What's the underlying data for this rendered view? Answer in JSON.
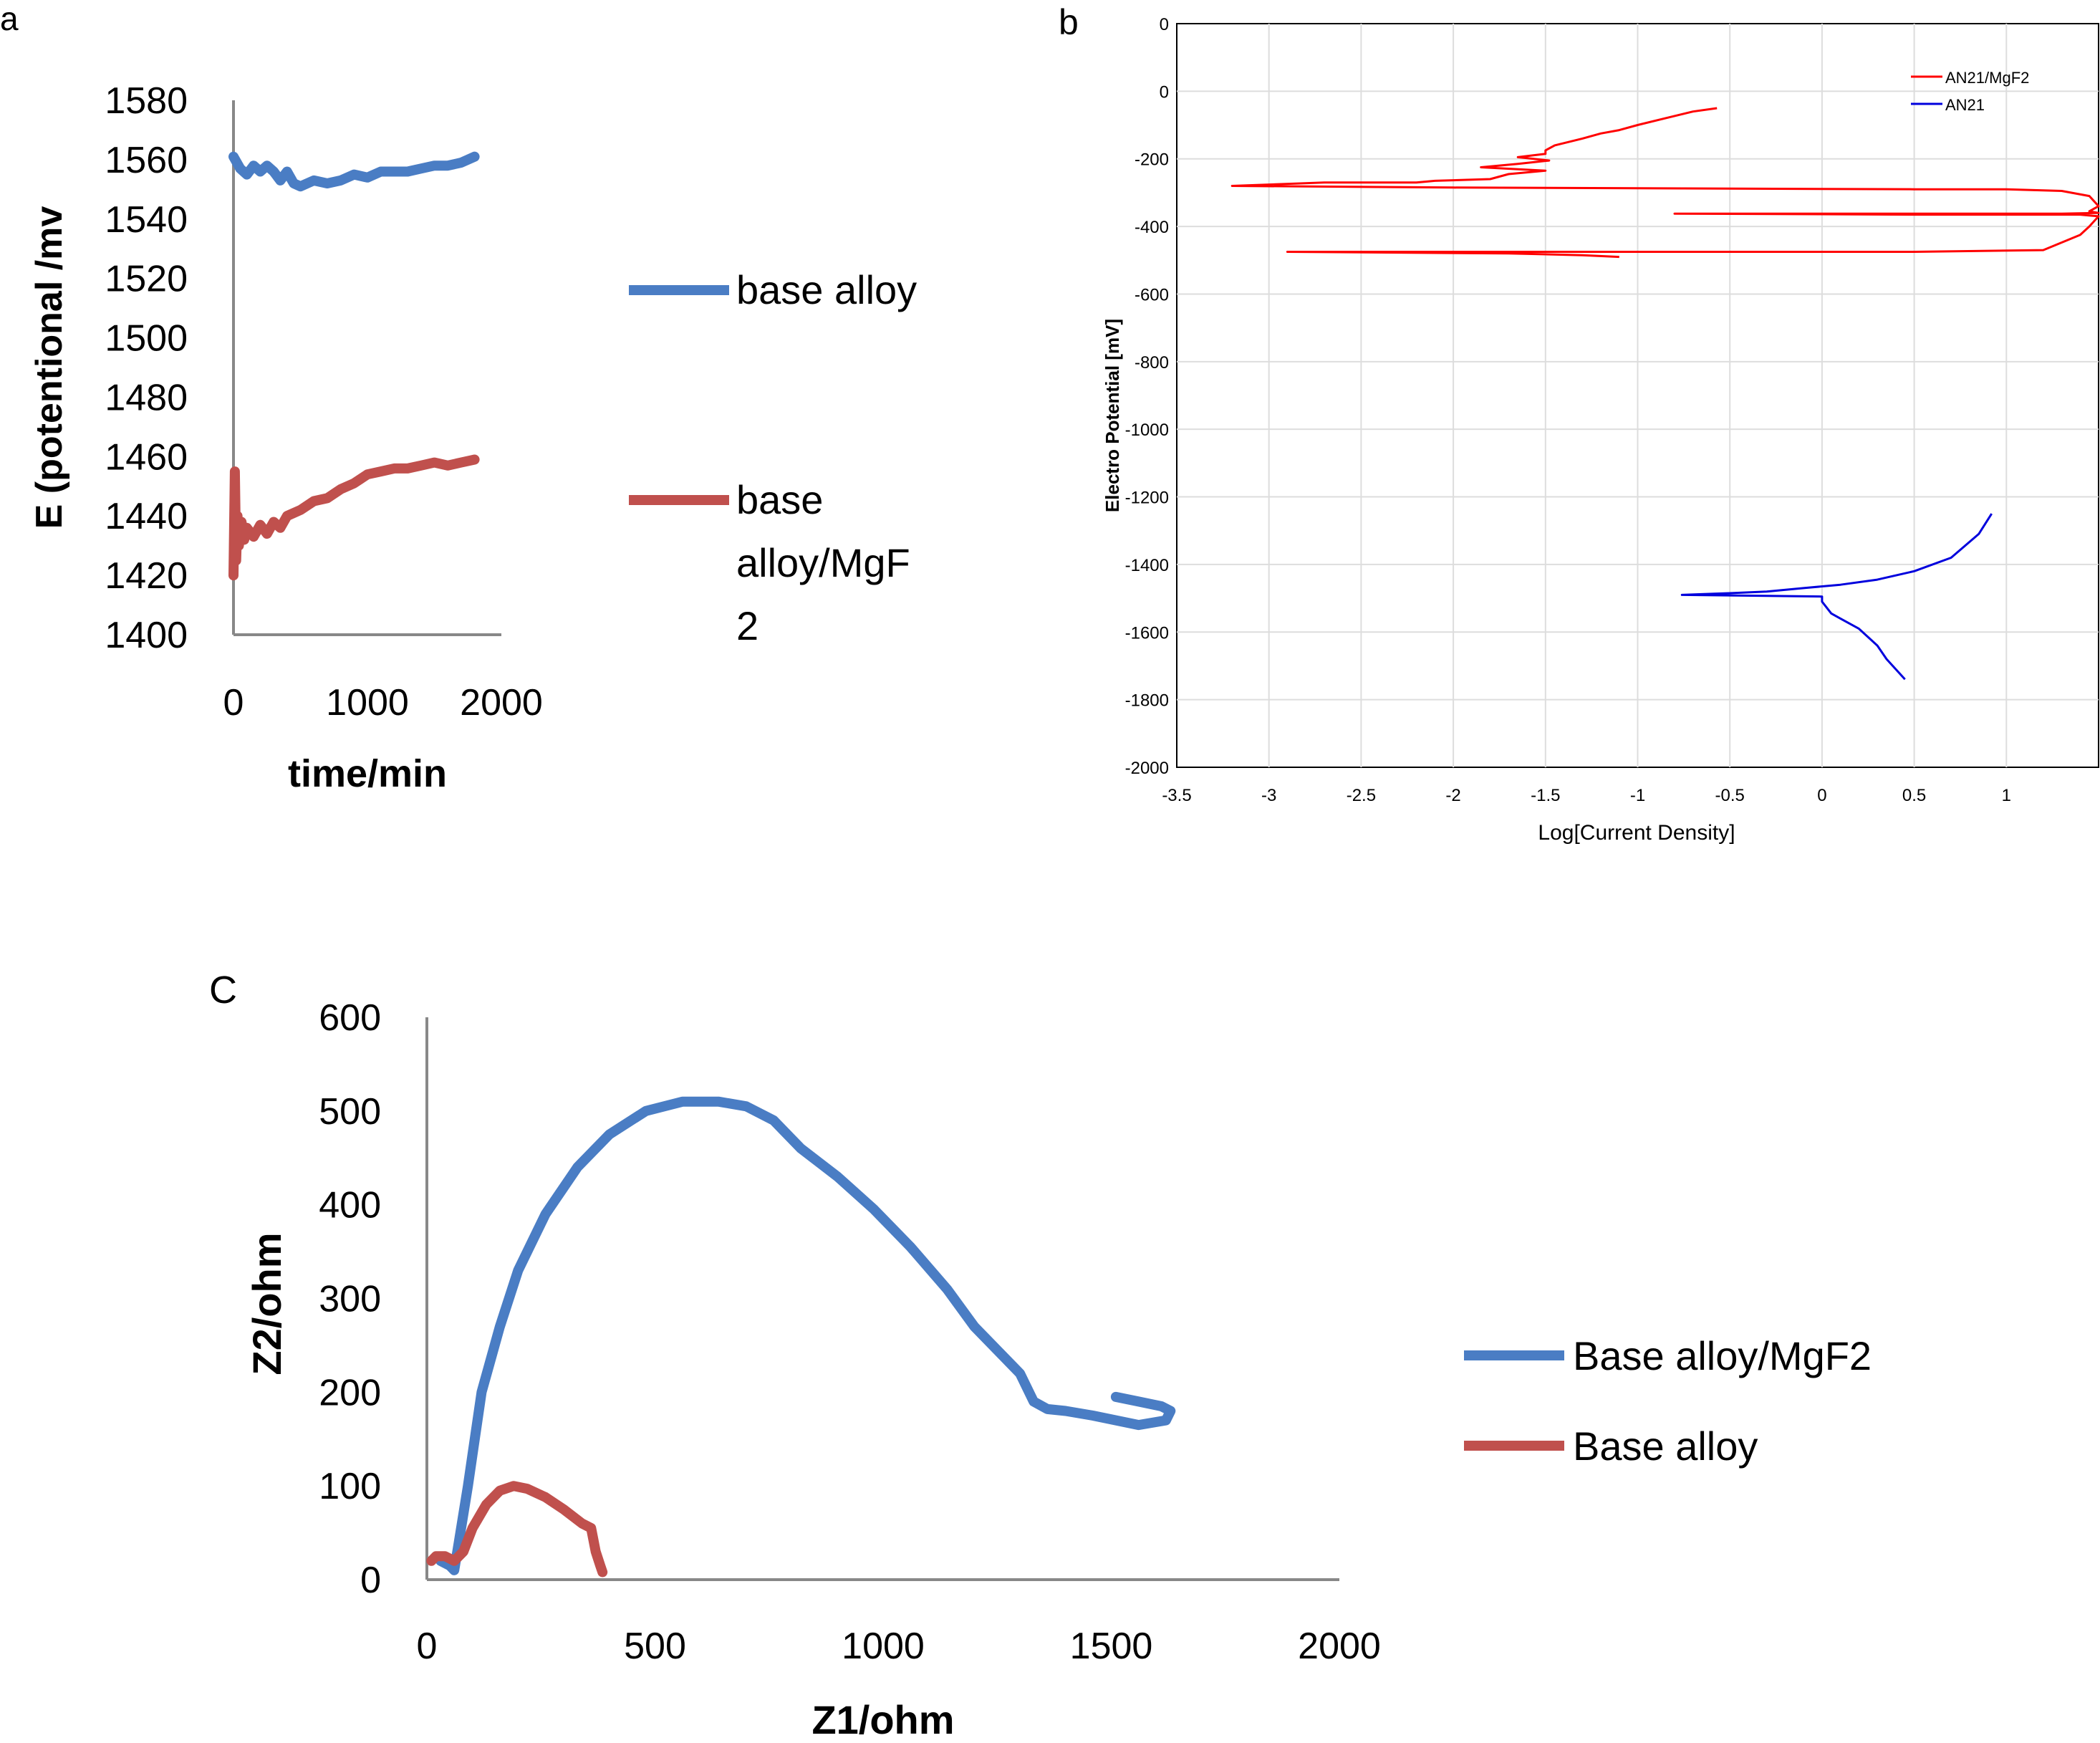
{
  "colors": {
    "blue": "#4a7dc4",
    "red": "#c0504d",
    "pd_red": "#ff0000",
    "pd_blue": "#0000dd",
    "axis": "#888888",
    "grid": "#dddddd"
  },
  "chart_data": [
    {
      "panel": "a",
      "type": "line",
      "title": "",
      "xlabel": "time/min",
      "ylabel": "E (potentional /mv",
      "xlim": [
        0,
        2000
      ],
      "ylim": [
        1400,
        1580
      ],
      "xticks": [
        "0",
        "1000",
        "2000"
      ],
      "yticks": [
        "1580",
        "1560",
        "1540",
        "1520",
        "1500",
        "1480",
        "1460",
        "1440",
        "1420",
        "1400"
      ],
      "legend": [
        "base alloy",
        "base alloy/MgF2"
      ],
      "legend_lines": [
        [
          "base alloy"
        ],
        [
          "base",
          "alloy/MgF",
          "2"
        ]
      ],
      "series": [
        {
          "name": "base alloy",
          "color": "#4a7dc4",
          "x": [
            0,
            50,
            100,
            150,
            200,
            250,
            300,
            350,
            400,
            450,
            500,
            600,
            700,
            800,
            900,
            1000,
            1100,
            1200,
            1300,
            1400,
            1500,
            1600,
            1700,
            1800
          ],
          "y": [
            1561,
            1557,
            1555,
            1558,
            1556,
            1558,
            1556,
            1553,
            1556,
            1552,
            1551,
            1553,
            1552,
            1553,
            1555,
            1554,
            1556,
            1556,
            1556,
            1557,
            1558,
            1558,
            1559,
            1561
          ]
        },
        {
          "name": "base alloy/MgF2",
          "color": "#c0504d",
          "x": [
            0,
            10,
            20,
            30,
            40,
            60,
            80,
            100,
            150,
            200,
            250,
            300,
            350,
            400,
            500,
            600,
            700,
            800,
            900,
            1000,
            1100,
            1200,
            1300,
            1400,
            1500,
            1600,
            1700,
            1800
          ],
          "y": [
            1420,
            1455,
            1425,
            1440,
            1430,
            1438,
            1432,
            1436,
            1433,
            1437,
            1434,
            1438,
            1436,
            1440,
            1442,
            1445,
            1446,
            1449,
            1451,
            1454,
            1455,
            1456,
            1456,
            1457,
            1458,
            1457,
            1458,
            1459
          ]
        }
      ]
    },
    {
      "panel": "b",
      "type": "line",
      "title": "",
      "xlabel": "Log[Current Density]",
      "ylabel": "Electro Potential [mV]",
      "xlim": [
        -3.5,
        1.5
      ],
      "ylim": [
        -2000,
        200
      ],
      "xticks": [
        "-3.5",
        "-3",
        "-2.5",
        "-2",
        "-1.5",
        "-1",
        "-0.5",
        "0",
        "0.5",
        "1"
      ],
      "yticks": [
        "0",
        "0",
        "-200",
        "-400",
        "-600",
        "-800",
        "-1000",
        "-1200",
        "-1400",
        "-1600",
        "-1800",
        "-2000"
      ],
      "grid": true,
      "legend_position": "top-right",
      "legend": [
        "AN21/MgF2",
        "AN21"
      ],
      "series": [
        {
          "name": "AN21/MgF2",
          "color": "#ff0000",
          "x": [
            -0.57,
            -0.7,
            -0.85,
            -1.0,
            -1.1,
            -1.2,
            -1.3,
            -1.45,
            -1.5,
            -1.5,
            -1.65,
            -1.48,
            -1.65,
            -1.85,
            -1.5,
            -1.7,
            -1.8,
            -2.1,
            -2.2,
            -2.7,
            -3.2,
            -2.0,
            0.5,
            1.0,
            1.3,
            1.45,
            1.5,
            1.45,
            1.5,
            1.3,
            -0.8,
            0.5,
            1.0,
            1.4,
            1.5,
            1.45,
            1.4,
            1.2,
            0.5,
            -1.0,
            -2.9,
            -1.7,
            -1.3,
            -1.1
          ],
          "y": [
            -50,
            -60,
            -80,
            -100,
            -115,
            -125,
            -140,
            -160,
            -175,
            -185,
            -195,
            -205,
            -215,
            -225,
            -235,
            -245,
            -260,
            -265,
            -270,
            -270,
            -280,
            -285,
            -290,
            -290,
            -295,
            -310,
            -340,
            -355,
            -360,
            -362,
            -362,
            -365,
            -365,
            -365,
            -370,
            -400,
            -425,
            -470,
            -475,
            -475,
            -475,
            -480,
            -485,
            -490
          ]
        },
        {
          "name": "AN21",
          "color": "#0000dd",
          "x": [
            0.92,
            0.85,
            0.7,
            0.5,
            0.3,
            0.1,
            -0.1,
            -0.3,
            -0.5,
            -0.76,
            0.0,
            0.0,
            0.05,
            0.1,
            0.2,
            0.3,
            0.35,
            0.45
          ],
          "y": [
            -1250,
            -1310,
            -1380,
            -1420,
            -1445,
            -1460,
            -1470,
            -1480,
            -1485,
            -1490,
            -1495,
            -1510,
            -1545,
            -1560,
            -1590,
            -1640,
            -1680,
            -1740
          ]
        }
      ]
    },
    {
      "panel": "C",
      "type": "line",
      "title": "",
      "xlabel": "Z1/ohm",
      "ylabel": "Z2/ohm",
      "xlim": [
        0,
        2000
      ],
      "ylim": [
        0,
        600
      ],
      "xticks": [
        "0",
        "500",
        "1000",
        "1500",
        "2000"
      ],
      "yticks": [
        "600",
        "500",
        "400",
        "300",
        "200",
        "100",
        "0"
      ],
      "legend": [
        "Base alloy/MgF2",
        "Base alloy"
      ],
      "series": [
        {
          "name": "Base alloy/MgF2",
          "color": "#4a7dc4",
          "x": [
            30,
            50,
            60,
            70,
            90,
            120,
            160,
            200,
            260,
            330,
            400,
            480,
            560,
            640,
            700,
            760,
            820,
            900,
            980,
            1060,
            1140,
            1200,
            1230,
            1260,
            1300,
            1330,
            1360,
            1400,
            1460,
            1560,
            1620,
            1630,
            1610,
            1560,
            1510
          ],
          "y": [
            20,
            15,
            10,
            40,
            100,
            200,
            270,
            330,
            390,
            440,
            475,
            500,
            510,
            510,
            505,
            490,
            460,
            430,
            395,
            355,
            310,
            270,
            255,
            240,
            220,
            190,
            182,
            180,
            175,
            165,
            170,
            180,
            185,
            190,
            195
          ]
        },
        {
          "name": "Base alloy",
          "color": "#c0504d",
          "x": [
            10,
            20,
            40,
            60,
            80,
            100,
            130,
            160,
            190,
            220,
            260,
            300,
            340,
            360,
            370,
            380,
            385
          ],
          "y": [
            20,
            25,
            25,
            20,
            30,
            55,
            80,
            95,
            100,
            97,
            88,
            75,
            60,
            55,
            30,
            15,
            8
          ]
        }
      ]
    }
  ],
  "panel_labels": {
    "a": "a",
    "b": "b",
    "c": "C"
  }
}
